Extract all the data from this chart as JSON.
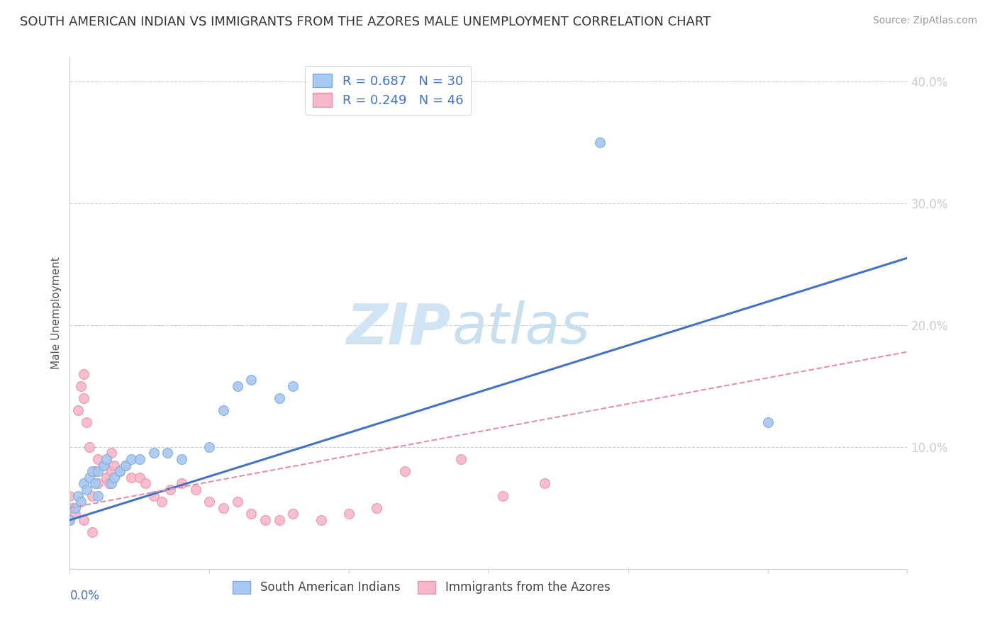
{
  "title": "SOUTH AMERICAN INDIAN VS IMMIGRANTS FROM THE AZORES MALE UNEMPLOYMENT CORRELATION CHART",
  "source": "Source: ZipAtlas.com",
  "ylabel": "Male Unemployment",
  "y_ticks": [
    0.0,
    0.1,
    0.2,
    0.3,
    0.4
  ],
  "y_tick_labels": [
    "",
    "10.0%",
    "20.0%",
    "30.0%",
    "40.0%"
  ],
  "xlim": [
    0.0,
    0.3
  ],
  "ylim": [
    0.0,
    0.42
  ],
  "legend_blue_label": "R = 0.687   N = 30",
  "legend_pink_label": "R = 0.249   N = 46",
  "legend_bottom_blue": "South American Indians",
  "legend_bottom_pink": "Immigrants from the Azores",
  "blue_color": "#a8c8f0",
  "blue_edge": "#7aabdc",
  "pink_color": "#f5b8c8",
  "pink_edge": "#e890a8",
  "blue_line_color": "#4472c4",
  "pink_line_color": "#e090a8",
  "watermark_zip_color": "#d0e4f4",
  "watermark_atlas_color": "#c8dff0",
  "grid_color": "#cccccc",
  "background_color": "#ffffff",
  "title_fontsize": 13,
  "axis_label_fontsize": 11,
  "tick_fontsize": 12,
  "source_fontsize": 10,
  "blue_scatter_x": [
    0.0,
    0.002,
    0.003,
    0.004,
    0.005,
    0.006,
    0.007,
    0.008,
    0.009,
    0.01,
    0.01,
    0.012,
    0.013,
    0.015,
    0.016,
    0.018,
    0.02,
    0.022,
    0.025,
    0.03,
    0.035,
    0.04,
    0.05,
    0.055,
    0.06,
    0.065,
    0.075,
    0.08,
    0.19,
    0.25
  ],
  "blue_scatter_y": [
    0.04,
    0.05,
    0.06,
    0.055,
    0.07,
    0.065,
    0.075,
    0.08,
    0.07,
    0.06,
    0.08,
    0.085,
    0.09,
    0.07,
    0.075,
    0.08,
    0.085,
    0.09,
    0.09,
    0.095,
    0.095,
    0.09,
    0.1,
    0.13,
    0.15,
    0.155,
    0.14,
    0.15,
    0.35,
    0.12
  ],
  "pink_scatter_x": [
    0.0,
    0.0,
    0.001,
    0.002,
    0.003,
    0.004,
    0.005,
    0.005,
    0.006,
    0.007,
    0.008,
    0.009,
    0.01,
    0.01,
    0.012,
    0.013,
    0.014,
    0.015,
    0.015,
    0.016,
    0.018,
    0.02,
    0.022,
    0.025,
    0.027,
    0.03,
    0.033,
    0.036,
    0.04,
    0.045,
    0.05,
    0.055,
    0.06,
    0.065,
    0.07,
    0.075,
    0.08,
    0.09,
    0.1,
    0.11,
    0.12,
    0.14,
    0.155,
    0.17,
    0.005,
    0.008
  ],
  "pink_scatter_y": [
    0.06,
    0.04,
    0.05,
    0.045,
    0.13,
    0.15,
    0.14,
    0.16,
    0.12,
    0.1,
    0.06,
    0.08,
    0.07,
    0.09,
    0.085,
    0.075,
    0.07,
    0.08,
    0.095,
    0.085,
    0.08,
    0.085,
    0.075,
    0.075,
    0.07,
    0.06,
    0.055,
    0.065,
    0.07,
    0.065,
    0.055,
    0.05,
    0.055,
    0.045,
    0.04,
    0.04,
    0.045,
    0.04,
    0.045,
    0.05,
    0.08,
    0.09,
    0.06,
    0.07,
    0.04,
    0.03
  ],
  "blue_line_x": [
    0.0,
    0.3
  ],
  "blue_line_y": [
    0.04,
    0.255
  ],
  "pink_line_x": [
    0.0,
    0.3
  ],
  "pink_line_y": [
    0.05,
    0.178
  ]
}
